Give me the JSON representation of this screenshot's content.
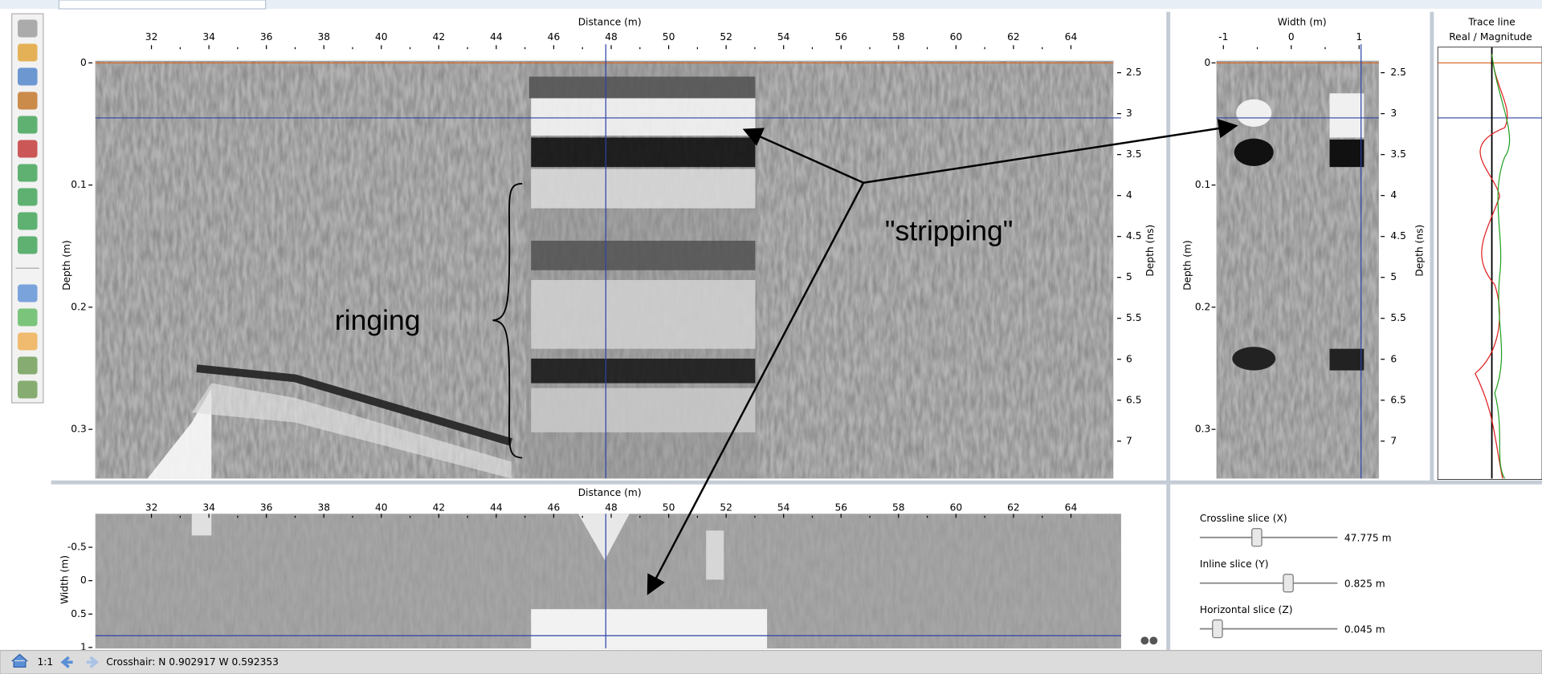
{
  "main_view": {
    "x_axis_label": "Distance (m)",
    "x_ticks": [
      "32",
      "34",
      "36",
      "38",
      "40",
      "42",
      "44",
      "46",
      "48",
      "50",
      "52",
      "54",
      "56",
      "58",
      "60",
      "62",
      "64"
    ],
    "depth_axis_label": "Depth (m)",
    "depth_ticks": [
      "0",
      "0.1",
      "0.2",
      "0.3"
    ],
    "time_axis_label": "Depth (ns)",
    "time_ticks": [
      "2.5",
      "3",
      "3.5",
      "4",
      "4.5",
      "5",
      "5.5",
      "6",
      "6.5",
      "7"
    ]
  },
  "side_view": {
    "x_axis_label": "Width (m)",
    "x_ticks": [
      "-1",
      "0",
      "1"
    ],
    "depth_axis_label": "Depth (m)",
    "depth_ticks": [
      "0",
      "0.1",
      "0.2",
      "0.3"
    ],
    "time_axis_label": "Depth (ns)",
    "time_ticks": [
      "2.5",
      "3",
      "3.5",
      "4",
      "4.5",
      "5",
      "5.5",
      "6",
      "6.5",
      "7"
    ]
  },
  "trace_view": {
    "title": "Trace line",
    "legend_real": "Real",
    "legend_separator": "/",
    "legend_magnitude": "Magnitude"
  },
  "plan_view": {
    "x_axis_label": "Distance (m)",
    "x_ticks": [
      "32",
      "34",
      "36",
      "38",
      "40",
      "42",
      "44",
      "46",
      "48",
      "50",
      "52",
      "54",
      "56",
      "58",
      "60",
      "62",
      "64"
    ],
    "y_axis_label": "Width (m)",
    "y_ticks": [
      "-0.5",
      "0",
      "0.5",
      "1"
    ]
  },
  "sliders": [
    {
      "label": "Crossline slice (X)",
      "value": "47.775 m"
    },
    {
      "label": "Inline slice (Y)",
      "value": "0.825 m"
    },
    {
      "label": "Horizontal slice (Z)",
      "value": "0.045 m"
    }
  ],
  "annotations": {
    "ringing": "ringing",
    "stripping": "\"stripping\""
  },
  "status_bar": {
    "zoom": "1:1",
    "crosshair": "Crosshair: N 0.902917 W 0.592353"
  }
}
